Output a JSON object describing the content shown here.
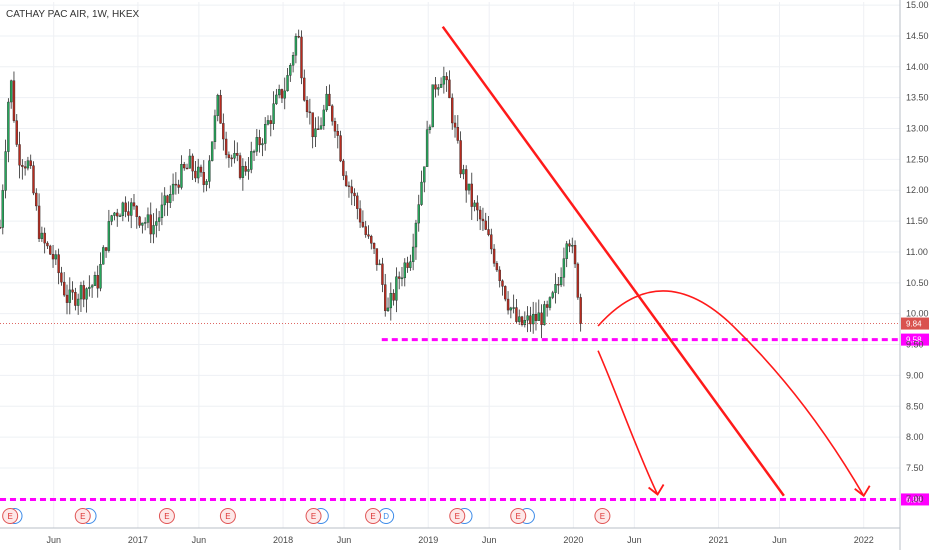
{
  "chart_data": {
    "type": "candlestick",
    "title": "CATHAY PAC AIR, 1W, HKEX",
    "y_ticks": [
      "15.00",
      "14.50",
      "14.00",
      "13.50",
      "13.00",
      "12.50",
      "12.00",
      "11.50",
      "11.00",
      "10.50",
      "10.00",
      "9.50",
      "9.00",
      "8.50",
      "8.00",
      "7.50",
      "7.00"
    ],
    "ylim": [
      6.9,
      15.05
    ],
    "x_ticks": [
      "Jun",
      "2017",
      "Jun",
      "2018",
      "Jun",
      "2019",
      "Jun",
      "2020",
      "Jun",
      "2021",
      "Jun",
      "2022"
    ],
    "x_tick_values": [
      2016.42,
      2017.0,
      2017.42,
      2018.0,
      2018.42,
      2019.0,
      2019.42,
      2020.0,
      2020.42,
      2021.0,
      2021.42,
      2022.0
    ],
    "xlim": [
      2016.05,
      2022.25
    ],
    "last_price": {
      "label": "9.84",
      "value": 9.84,
      "color": "#d9534f"
    },
    "levels": [
      {
        "label": "9.58",
        "value": 9.58,
        "color": "#ff00ff"
      },
      {
        "label": "6.99",
        "value": 6.99,
        "color": "#ff00ff"
      }
    ],
    "price_anchors": [
      [
        2016.05,
        11.4
      ],
      [
        2016.12,
        13.9
      ],
      [
        2016.17,
        12.6
      ],
      [
        2016.25,
        12.4
      ],
      [
        2016.33,
        11.2
      ],
      [
        2016.42,
        10.9
      ],
      [
        2016.52,
        10.2
      ],
      [
        2016.62,
        10.4
      ],
      [
        2016.72,
        10.5
      ],
      [
        2016.82,
        11.6
      ],
      [
        2016.92,
        11.8
      ],
      [
        2017.0,
        11.6
      ],
      [
        2017.1,
        11.4
      ],
      [
        2017.2,
        11.8
      ],
      [
        2017.28,
        12.2
      ],
      [
        2017.36,
        12.4
      ],
      [
        2017.46,
        12.1
      ],
      [
        2017.55,
        13.4
      ],
      [
        2017.62,
        12.6
      ],
      [
        2017.72,
        12.3
      ],
      [
        2017.8,
        12.6
      ],
      [
        2017.88,
        13.0
      ],
      [
        2017.95,
        13.4
      ],
      [
        2018.02,
        13.7
      ],
      [
        2018.1,
        14.6
      ],
      [
        2018.14,
        13.7
      ],
      [
        2018.22,
        12.8
      ],
      [
        2018.3,
        13.4
      ],
      [
        2018.36,
        13.1
      ],
      [
        2018.42,
        12.3
      ],
      [
        2018.5,
        11.8
      ],
      [
        2018.58,
        11.2
      ],
      [
        2018.66,
        10.8
      ],
      [
        2018.72,
        10.0
      ],
      [
        2018.8,
        10.6
      ],
      [
        2018.88,
        11.0
      ],
      [
        2018.95,
        12.1
      ],
      [
        2019.04,
        13.7
      ],
      [
        2019.1,
        13.9
      ],
      [
        2019.16,
        13.3
      ],
      [
        2019.22,
        12.4
      ],
      [
        2019.3,
        11.8
      ],
      [
        2019.38,
        11.4
      ],
      [
        2019.46,
        10.9
      ],
      [
        2019.55,
        10.2
      ],
      [
        2019.62,
        9.8
      ],
      [
        2019.72,
        9.9
      ],
      [
        2019.82,
        10.0
      ],
      [
        2019.9,
        10.5
      ],
      [
        2019.96,
        11.4
      ],
      [
        2020.02,
        10.6
      ],
      [
        2020.06,
        9.84
      ]
    ],
    "earnings_events": [
      {
        "date": 2016.12,
        "label": "E"
      },
      {
        "date": 2016.62,
        "label": "E"
      },
      {
        "date": 2017.2,
        "label": "E"
      },
      {
        "date": 2017.62,
        "label": "E"
      },
      {
        "date": 2018.21,
        "label": "E"
      },
      {
        "date": 2018.62,
        "label": "E"
      },
      {
        "date": 2019.2,
        "label": "E"
      },
      {
        "date": 2019.62,
        "label": "E"
      },
      {
        "date": 2020.2,
        "label": "E"
      }
    ],
    "dividend_events": [
      {
        "date": 2016.15,
        "label": ""
      },
      {
        "date": 2016.66,
        "label": ""
      },
      {
        "date": 2018.26,
        "label": ""
      },
      {
        "date": 2018.71,
        "label": "D"
      },
      {
        "date": 2019.25,
        "label": ""
      },
      {
        "date": 2019.68,
        "label": ""
      }
    ],
    "annotations": [
      {
        "type": "trendline",
        "points": [
          [
            2019.1,
            14.65
          ],
          [
            2021.45,
            7.05
          ]
        ],
        "color": "#ff1a1a"
      },
      {
        "type": "arrow-down-curve",
        "points": [
          [
            2020.17,
            9.4
          ],
          [
            2020.3,
            8.7
          ],
          [
            2020.45,
            7.7
          ],
          [
            2020.58,
            7.07
          ]
        ],
        "color": "#ff1a1a"
      },
      {
        "type": "arrow-arc",
        "points": [
          [
            2020.17,
            9.8
          ],
          [
            2020.6,
            10.45
          ],
          [
            2021.1,
            9.8
          ],
          [
            2021.6,
            8.4
          ],
          [
            2022.0,
            7.05
          ]
        ],
        "color": "#ff1a1a"
      }
    ],
    "colors": {
      "up": "#26a65b",
      "down": "#b82b1f",
      "grid": "#eef0f4",
      "axis": "#b9bfc7"
    }
  }
}
